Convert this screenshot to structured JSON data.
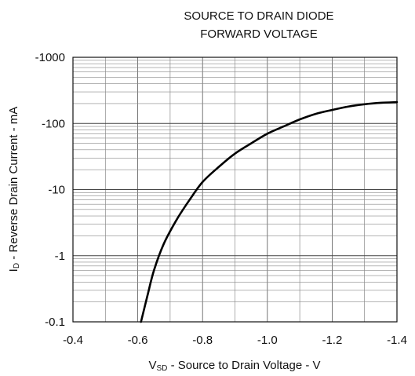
{
  "chart_data": {
    "type": "line",
    "title": [
      "SOURCE TO DRAIN DIODE",
      "FORWARD VOLTAGE"
    ],
    "xlabel": {
      "main": "V",
      "sub": "SD",
      "rest": " - Source to Drain Voltage - V"
    },
    "ylabel": {
      "main": "I",
      "sub": "D",
      "rest": " - Reverse Drain Current - mA"
    },
    "x_scale": "linear",
    "y_scale": "log",
    "xlim": [
      -0.4,
      -1.4
    ],
    "ylim": [
      -0.1,
      -1000
    ],
    "x_ticks": [
      -0.4,
      -0.6,
      -0.8,
      -1.0,
      -1.2,
      -1.4
    ],
    "x_tick_labels": [
      "-0.4",
      "-0.6",
      "-0.8",
      "-1.0",
      "-1.2",
      "-1.4"
    ],
    "y_ticks": [
      -0.1,
      -1,
      -10,
      -100,
      -1000
    ],
    "y_tick_labels": [
      "-0.1",
      "-1",
      "-10",
      "-100",
      "-1000"
    ],
    "grid": true,
    "series": [
      {
        "x": [
          -0.61,
          -0.63,
          -0.65,
          -0.68,
          -0.72,
          -0.76,
          -0.8,
          -0.85,
          -0.9,
          -0.95,
          -1.0,
          -1.05,
          -1.1,
          -1.15,
          -1.2,
          -1.25,
          -1.3,
          -1.35,
          -1.4
        ],
        "y": [
          -0.1,
          -0.25,
          -0.6,
          -1.5,
          -3.5,
          -7,
          -13,
          -22,
          -35,
          -50,
          -70,
          -90,
          -115,
          -140,
          -160,
          -180,
          -195,
          -205,
          -210
        ]
      }
    ]
  }
}
